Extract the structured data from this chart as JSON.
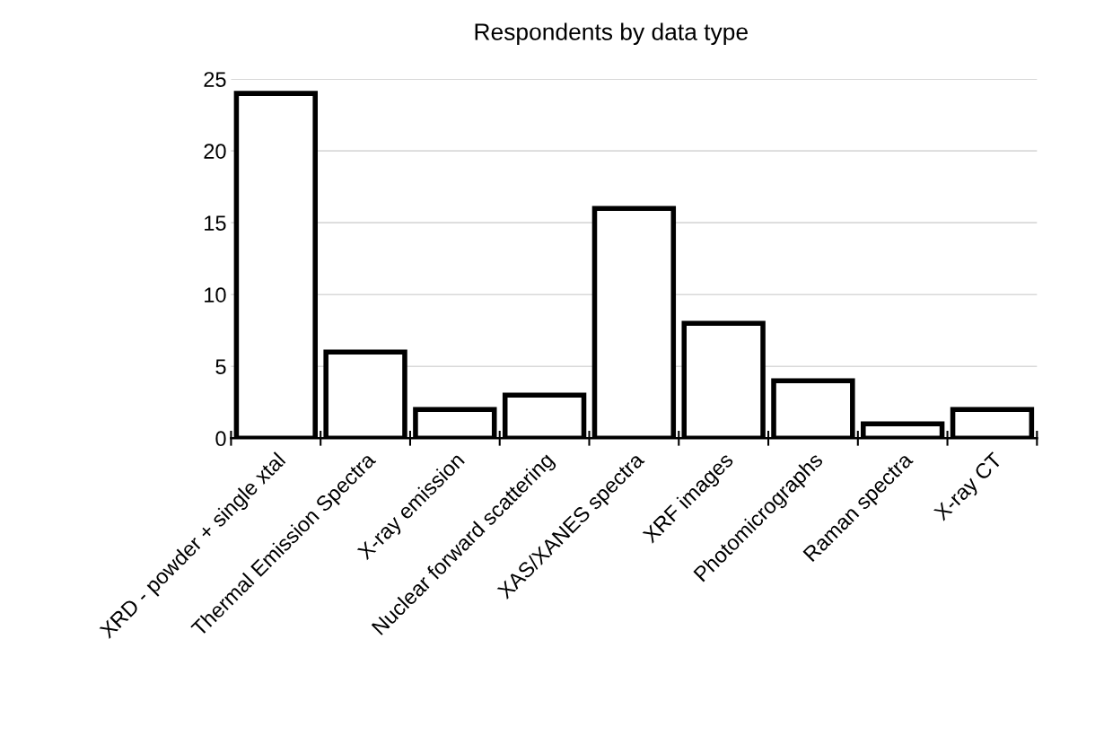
{
  "chart_data": {
    "type": "bar",
    "title": "Respondents by data type",
    "categories": [
      "XRD - powder + single xtal",
      "Thermal Emission Spectra",
      "X-ray emission",
      "Nuclear forward scattering",
      "XAS/XANES spectra",
      "XRF images",
      "Photomicrographs",
      "Raman spectra",
      "X-ray CT"
    ],
    "values": [
      24,
      6,
      2,
      3,
      16,
      8,
      4,
      1,
      2
    ],
    "color": "#ffffff",
    "ylim": [
      0,
      25
    ],
    "yticks": [
      0,
      5,
      10,
      15,
      20,
      25
    ],
    "grid": "y",
    "legend": false
  }
}
